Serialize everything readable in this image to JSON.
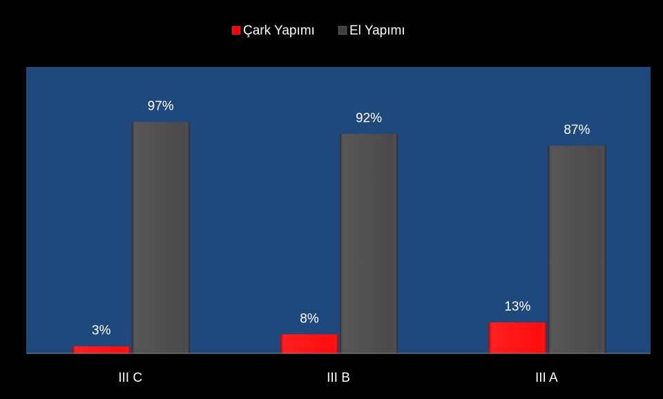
{
  "chart_data": {
    "type": "bar",
    "categories": [
      "III C",
      "III B",
      "III A"
    ],
    "series": [
      {
        "name": "Çark Yapımı",
        "color": "#ff0000",
        "values": [
          3,
          8,
          13
        ],
        "value_labels": [
          "3%",
          "8%",
          "13%"
        ]
      },
      {
        "name": "El Yapımı",
        "color": "#404040",
        "values": [
          97,
          92,
          87
        ],
        "value_labels": [
          "97%",
          "92%",
          "87%"
        ]
      }
    ],
    "ylim": [
      0,
      120
    ],
    "plot_background": "#1f497d",
    "legend": "top"
  }
}
